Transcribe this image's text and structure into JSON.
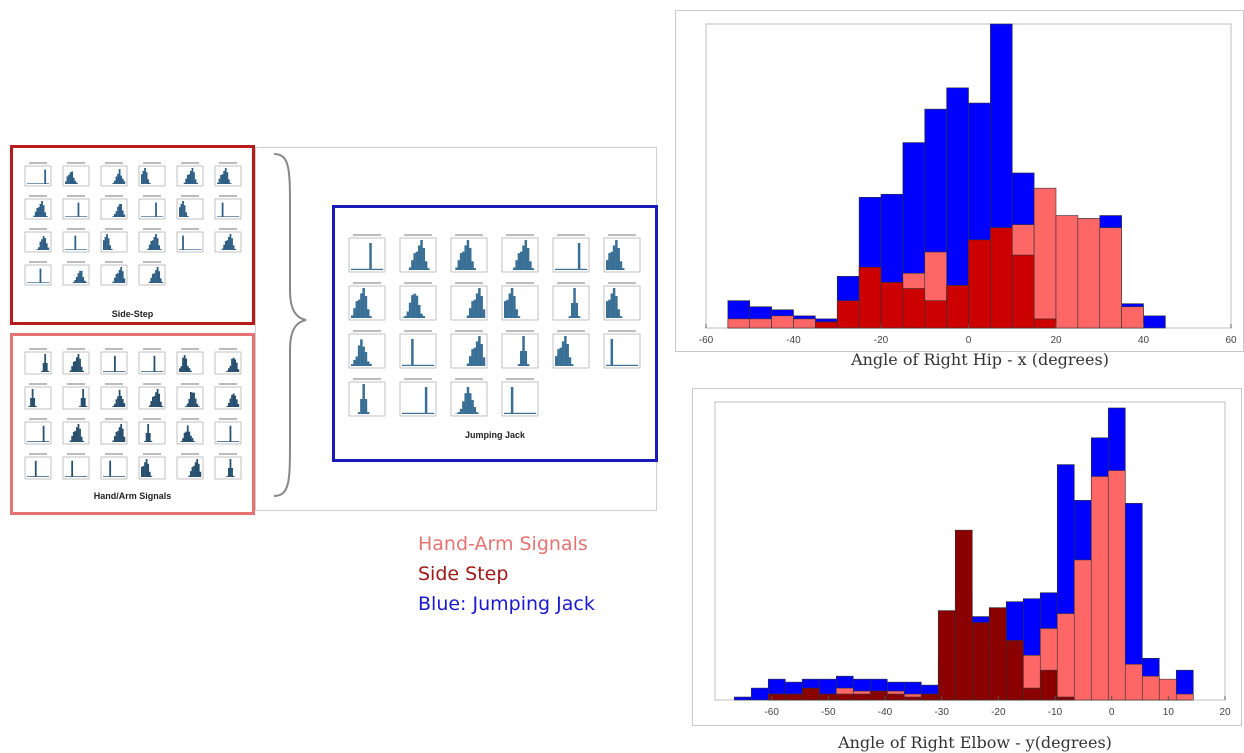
{
  "panels": {
    "side_step": {
      "caption": "Side-Step",
      "border": "#b71c1c"
    },
    "hand_arm": {
      "caption": "Hand/Arm Signals",
      "border": "#e57373"
    },
    "jumping_jack": {
      "caption": "Jumping Jack",
      "border": "#1a1ab8"
    }
  },
  "legend": {
    "hand_arm": "Hand-Arm Signals",
    "side_step": "Side Step",
    "jumping_jack": "Blue: Jumping Jack",
    "colors": {
      "hand_arm": "#e57373",
      "side_step": "#a01818",
      "jumping_jack": "#1a1ad0"
    }
  },
  "chart_data": [
    {
      "type": "bar",
      "histogram": true,
      "title": "",
      "xlabel": "Angle of Right Hip - x (degrees)",
      "ylabel": "",
      "xlim": [
        -60,
        60
      ],
      "ylim": [
        0,
        100
      ],
      "xticks": [
        -60,
        -40,
        -20,
        0,
        20,
        40,
        60
      ],
      "bin_edges": [
        -55,
        -50,
        -45,
        -40,
        -35,
        -30,
        -25,
        -20,
        -15,
        -10,
        -5,
        0,
        5,
        10,
        15,
        20,
        25,
        30,
        35,
        40,
        45
      ],
      "series": [
        {
          "color": "#0000ff",
          "values": [
            9,
            7,
            6,
            4,
            3,
            17,
            43,
            44,
            61,
            72,
            79,
            74,
            100,
            51,
            25,
            33,
            36,
            37,
            8,
            4
          ]
        },
        {
          "color": "#ff6666",
          "values": [
            3,
            3,
            4,
            3,
            2,
            3,
            2,
            10,
            18,
            25,
            14,
            28,
            28,
            34,
            46,
            37,
            36,
            33,
            7,
            0
          ]
        },
        {
          "color": "#cc0000",
          "values": [
            0,
            0,
            0,
            0,
            2,
            9,
            20,
            15,
            13,
            9,
            14,
            29,
            33,
            24,
            3,
            0,
            0,
            0,
            0,
            0
          ]
        }
      ]
    },
    {
      "type": "bar",
      "histogram": true,
      "title": "",
      "xlabel": "Angle of Right Elbow - y(degrees)",
      "ylabel": "",
      "xlim": [
        -70,
        20
      ],
      "ylim": [
        0,
        100
      ],
      "xticks": [
        -60,
        -50,
        -40,
        -30,
        -20,
        -10,
        0,
        10,
        20
      ],
      "bin_edges": [
        -66.6,
        -63.6,
        -60.6,
        -57.6,
        -54.6,
        -51.6,
        -48.6,
        -45.6,
        -42.6,
        -39.6,
        -36.6,
        -33.6,
        -30.6,
        -27.6,
        -24.6,
        -21.6,
        -18.6,
        -15.6,
        -12.6,
        -9.6,
        -6.6,
        -3.6,
        -0.6,
        2.4,
        5.4,
        8.4,
        11.4,
        14.4
      ],
      "series": [
        {
          "color": "#0000ff",
          "values": [
            1,
            4,
            7,
            6,
            7,
            7,
            8,
            7,
            7,
            6,
            6,
            5,
            14,
            35,
            28,
            30,
            33,
            34,
            36,
            79,
            67,
            88,
            98,
            66,
            14,
            6,
            10
          ]
        },
        {
          "color": "#ff6666",
          "values": [
            0,
            0,
            2,
            2,
            3,
            2,
            4,
            3,
            3,
            3,
            2,
            2,
            13,
            27,
            24,
            15,
            13,
            15,
            24,
            29,
            47,
            75,
            77,
            12,
            8,
            7,
            2
          ]
        },
        {
          "color": "#8b0000",
          "values": [
            0,
            0,
            2,
            2,
            4,
            2,
            2,
            2,
            3,
            2,
            1,
            2,
            30,
            57,
            26,
            31,
            20,
            4,
            10,
            1,
            0,
            0,
            0,
            0,
            0,
            0,
            0
          ]
        }
      ]
    }
  ]
}
